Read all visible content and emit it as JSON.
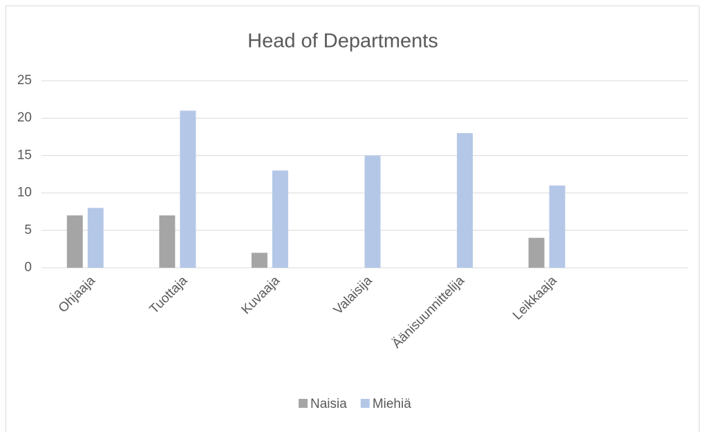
{
  "chart_data": {
    "type": "bar",
    "title": "Head of Departments",
    "categories": [
      "Ohjaaja",
      "Tuottaja",
      "Kuvaaja",
      "Valaisija",
      "Äänisuunnittelija",
      "Leikkaaja",
      null
    ],
    "series": [
      {
        "name": "Naisia",
        "color": "#a5a5a5",
        "values": [
          7,
          7,
          2,
          0,
          0,
          4,
          null
        ]
      },
      {
        "name": "Miehiä",
        "color": "#b4c7e7",
        "values": [
          8,
          21,
          13,
          15,
          18,
          11,
          null
        ]
      }
    ],
    "ylim": [
      0,
      25
    ],
    "yticks": [
      0,
      5,
      10,
      15,
      20,
      25
    ],
    "grid": true,
    "legend": "bottom"
  }
}
